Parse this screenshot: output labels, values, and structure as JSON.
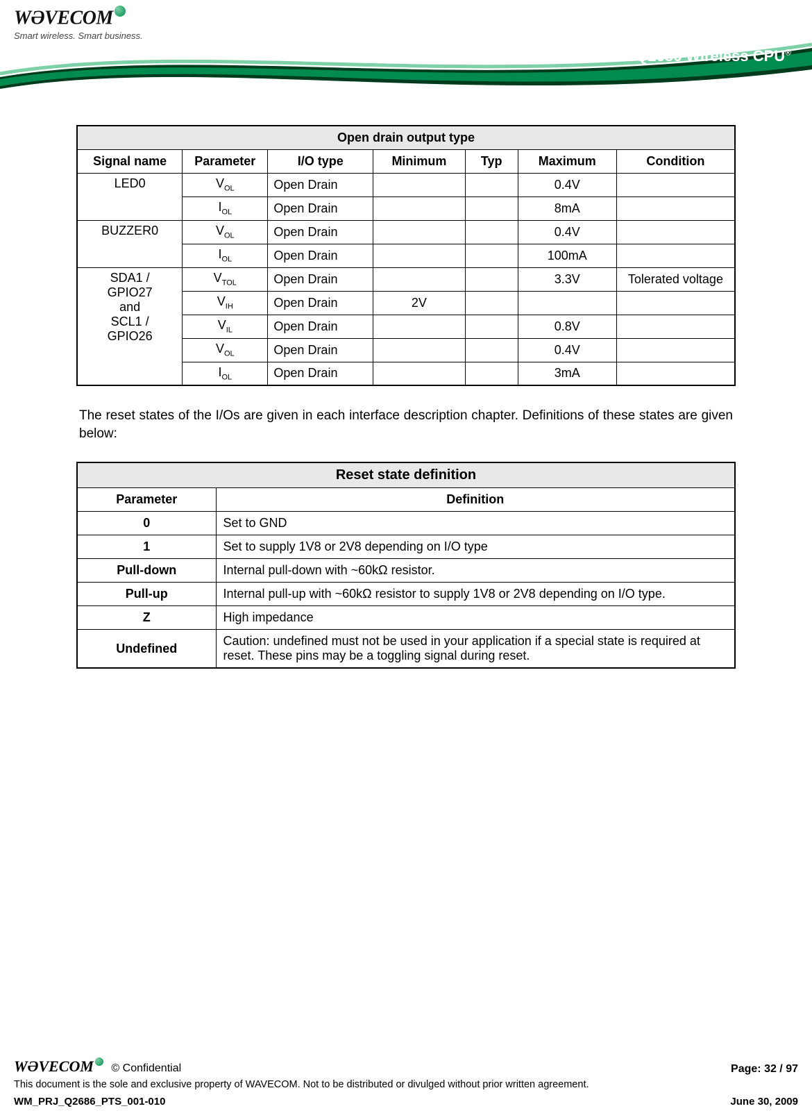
{
  "header": {
    "logo_text": "WƏVECOM",
    "logo_tagline": "Smart wireless. Smart business.",
    "product": "Q2686 Wireless CPU",
    "swoosh_colors": {
      "dark": "#003b1e",
      "mid": "#028b4e",
      "light": "#7ed0a8",
      "line": "#ffffff"
    }
  },
  "table1": {
    "title": "Open drain output type",
    "columns": [
      "Signal name",
      "Parameter",
      "I/O type",
      "Minimum",
      "Typ",
      "Maximum",
      "Condition"
    ],
    "col_widths": [
      "16%",
      "13%",
      "16%",
      "14%",
      "8%",
      "15%",
      "18%"
    ],
    "groups": [
      {
        "signal": "LED0",
        "signal_lines": [
          "LED0"
        ],
        "rows": [
          {
            "param_base": "V",
            "param_sub": "OL",
            "io": "Open Drain",
            "min": "",
            "typ": "",
            "max": "0.4V",
            "cond": ""
          },
          {
            "param_base": "I",
            "param_sub": "OL",
            "io": "Open Drain",
            "min": "",
            "typ": "",
            "max": "8mA",
            "cond": ""
          }
        ]
      },
      {
        "signal": "BUZZER0",
        "signal_lines": [
          "BUZZER0"
        ],
        "rows": [
          {
            "param_base": "V",
            "param_sub": "OL",
            "io": "Open Drain",
            "min": "",
            "typ": "",
            "max": "0.4V",
            "cond": ""
          },
          {
            "param_base": "I",
            "param_sub": "OL",
            "io": "Open Drain",
            "min": "",
            "typ": "",
            "max": "100mA",
            "cond": ""
          }
        ]
      },
      {
        "signal": "SDA1-SCL1",
        "signal_lines": [
          "SDA1 /",
          "GPIO27",
          "and",
          "SCL1 /",
          "GPIO26"
        ],
        "rows": [
          {
            "param_base": "V",
            "param_sub": "TOL",
            "io": "Open Drain",
            "min": "",
            "typ": "",
            "max": "3.3V",
            "cond": "Tolerated voltage"
          },
          {
            "param_base": "V",
            "param_sub": "IH",
            "io": "Open Drain",
            "min": "2V",
            "typ": "",
            "max": "",
            "cond": ""
          },
          {
            "param_base": "V",
            "param_sub": "IL",
            "io": "Open Drain",
            "min": "",
            "typ": "",
            "max": "0.8V",
            "cond": ""
          },
          {
            "param_base": "V",
            "param_sub": "OL",
            "io": "Open Drain",
            "min": "",
            "typ": "",
            "max": "0.4V",
            "cond": ""
          },
          {
            "param_base": "I",
            "param_sub": "OL",
            "io": "Open Drain",
            "min": "",
            "typ": "",
            "max": "3mA",
            "cond": ""
          }
        ]
      }
    ]
  },
  "paragraph": "The reset states of the I/Os are given in each interface description chapter. Definitions of these states are given below:",
  "table2": {
    "title": "Reset state definition",
    "columns": [
      "Parameter",
      "Definition"
    ],
    "rows": [
      {
        "param": "0",
        "def": "Set to GND"
      },
      {
        "param": "1",
        "def": "Set to supply 1V8 or 2V8 depending on I/O type"
      },
      {
        "param": "Pull-down",
        "def": "Internal pull-down with ~60kΩ resistor."
      },
      {
        "param": "Pull-up",
        "def": "Internal pull-up with ~60kΩ resistor to supply 1V8 or 2V8 depending on I/O type."
      },
      {
        "param": "Z",
        "def": "High impedance"
      },
      {
        "param": "Undefined",
        "def": "Caution: undefined must not be used in your application if a special state is required at reset. These pins may be a toggling signal during reset."
      }
    ]
  },
  "footer": {
    "logo_text": "WƏVECOM",
    "confidential": "© Confidential",
    "page": "Page: 32 / 97",
    "note": "This document is the sole and exclusive property of WAVECOM. Not to be distributed or divulged without prior written agreement.",
    "doc_ref": "WM_PRJ_Q2686_PTS_001-010",
    "date": "June 30, 2009"
  }
}
